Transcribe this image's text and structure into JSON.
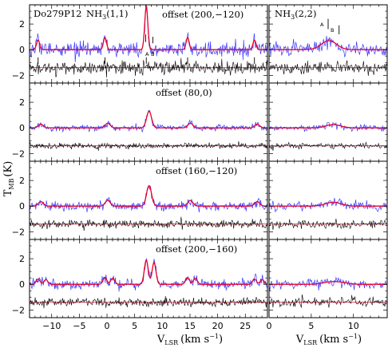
{
  "figure": {
    "source_label": "Do279P12",
    "ylabel": "T",
    "ylabel_sub": "MB",
    "ylabel_unit": "(K)",
    "xlabel_left": "V",
    "xlabel_left_sub": "LSR",
    "xlabel_left_unit": "(km s",
    "xlabel_left_sup": "−1",
    "xlabel_left_close": ")",
    "xlabel_right": "V",
    "xlabel_right_sub": "LSR",
    "xlabel_right_unit": "(km s",
    "xlabel_right_sup": "−1",
    "xlabel_right_close": ")",
    "left_line_label": "NH",
    "left_line_sub": "3",
    "left_line_tail": "(1,1)",
    "right_line_label": "NH",
    "right_line_sub": "3",
    "right_line_tail": "(2,2)",
    "marker_a_left": "A",
    "marker_b_left": "B",
    "marker_a_right": "A",
    "marker_b_right": "B"
  },
  "chart_data": {
    "type": "line",
    "layout": "4 rows x 2 columns of spectra panels",
    "colors": {
      "observed": "#3a3aff",
      "fit": "#e8002a",
      "residual": "#000000"
    },
    "left_xlim": [
      -14,
      29
    ],
    "right_xlim": [
      0,
      14
    ],
    "ylim": [
      -2.6,
      3.5
    ],
    "left_xticks": [
      -10,
      -5,
      0,
      5,
      10,
      15,
      20,
      25
    ],
    "right_xticks": [
      0,
      5,
      10
    ],
    "yticks": [
      -2,
      0,
      2
    ],
    "residual_offset": -1.4,
    "hyperfine_offsets": [
      -19.55,
      -7.47,
      0,
      7.47,
      19.55
    ],
    "hyperfine_rel": [
      0.22,
      0.28,
      1.0,
      0.28,
      0.22
    ],
    "marker_velocities": {
      "A": 7.0,
      "B": 8.3
    },
    "panels": [
      {
        "name": "offset (200,−120)",
        "label": "offset (200,−120)",
        "components": [
          {
            "v": 7.1,
            "amp": 3.4,
            "sigma": 0.28
          }
        ],
        "right_amp": 0.7,
        "noise": 0.28
      },
      {
        "name": "offset (80,0)",
        "label": "offset (80,0)",
        "components": [
          {
            "v": 7.6,
            "amp": 1.3,
            "sigma": 0.45
          }
        ],
        "right_amp": 0.25,
        "noise": 0.12
      },
      {
        "name": "offset (160,−120)",
        "label": "offset (160,−120)",
        "components": [
          {
            "v": 7.6,
            "amp": 1.6,
            "sigma": 0.45
          }
        ],
        "right_amp": 0.3,
        "noise": 0.18
      },
      {
        "name": "offset (200,−160)",
        "label": "offset (200,−160)",
        "components": [
          {
            "v": 7.1,
            "amp": 1.9,
            "sigma": 0.35
          },
          {
            "v": 8.5,
            "amp": 1.7,
            "sigma": 0.35
          }
        ],
        "right_amp": 0.15,
        "noise": 0.2
      }
    ]
  }
}
